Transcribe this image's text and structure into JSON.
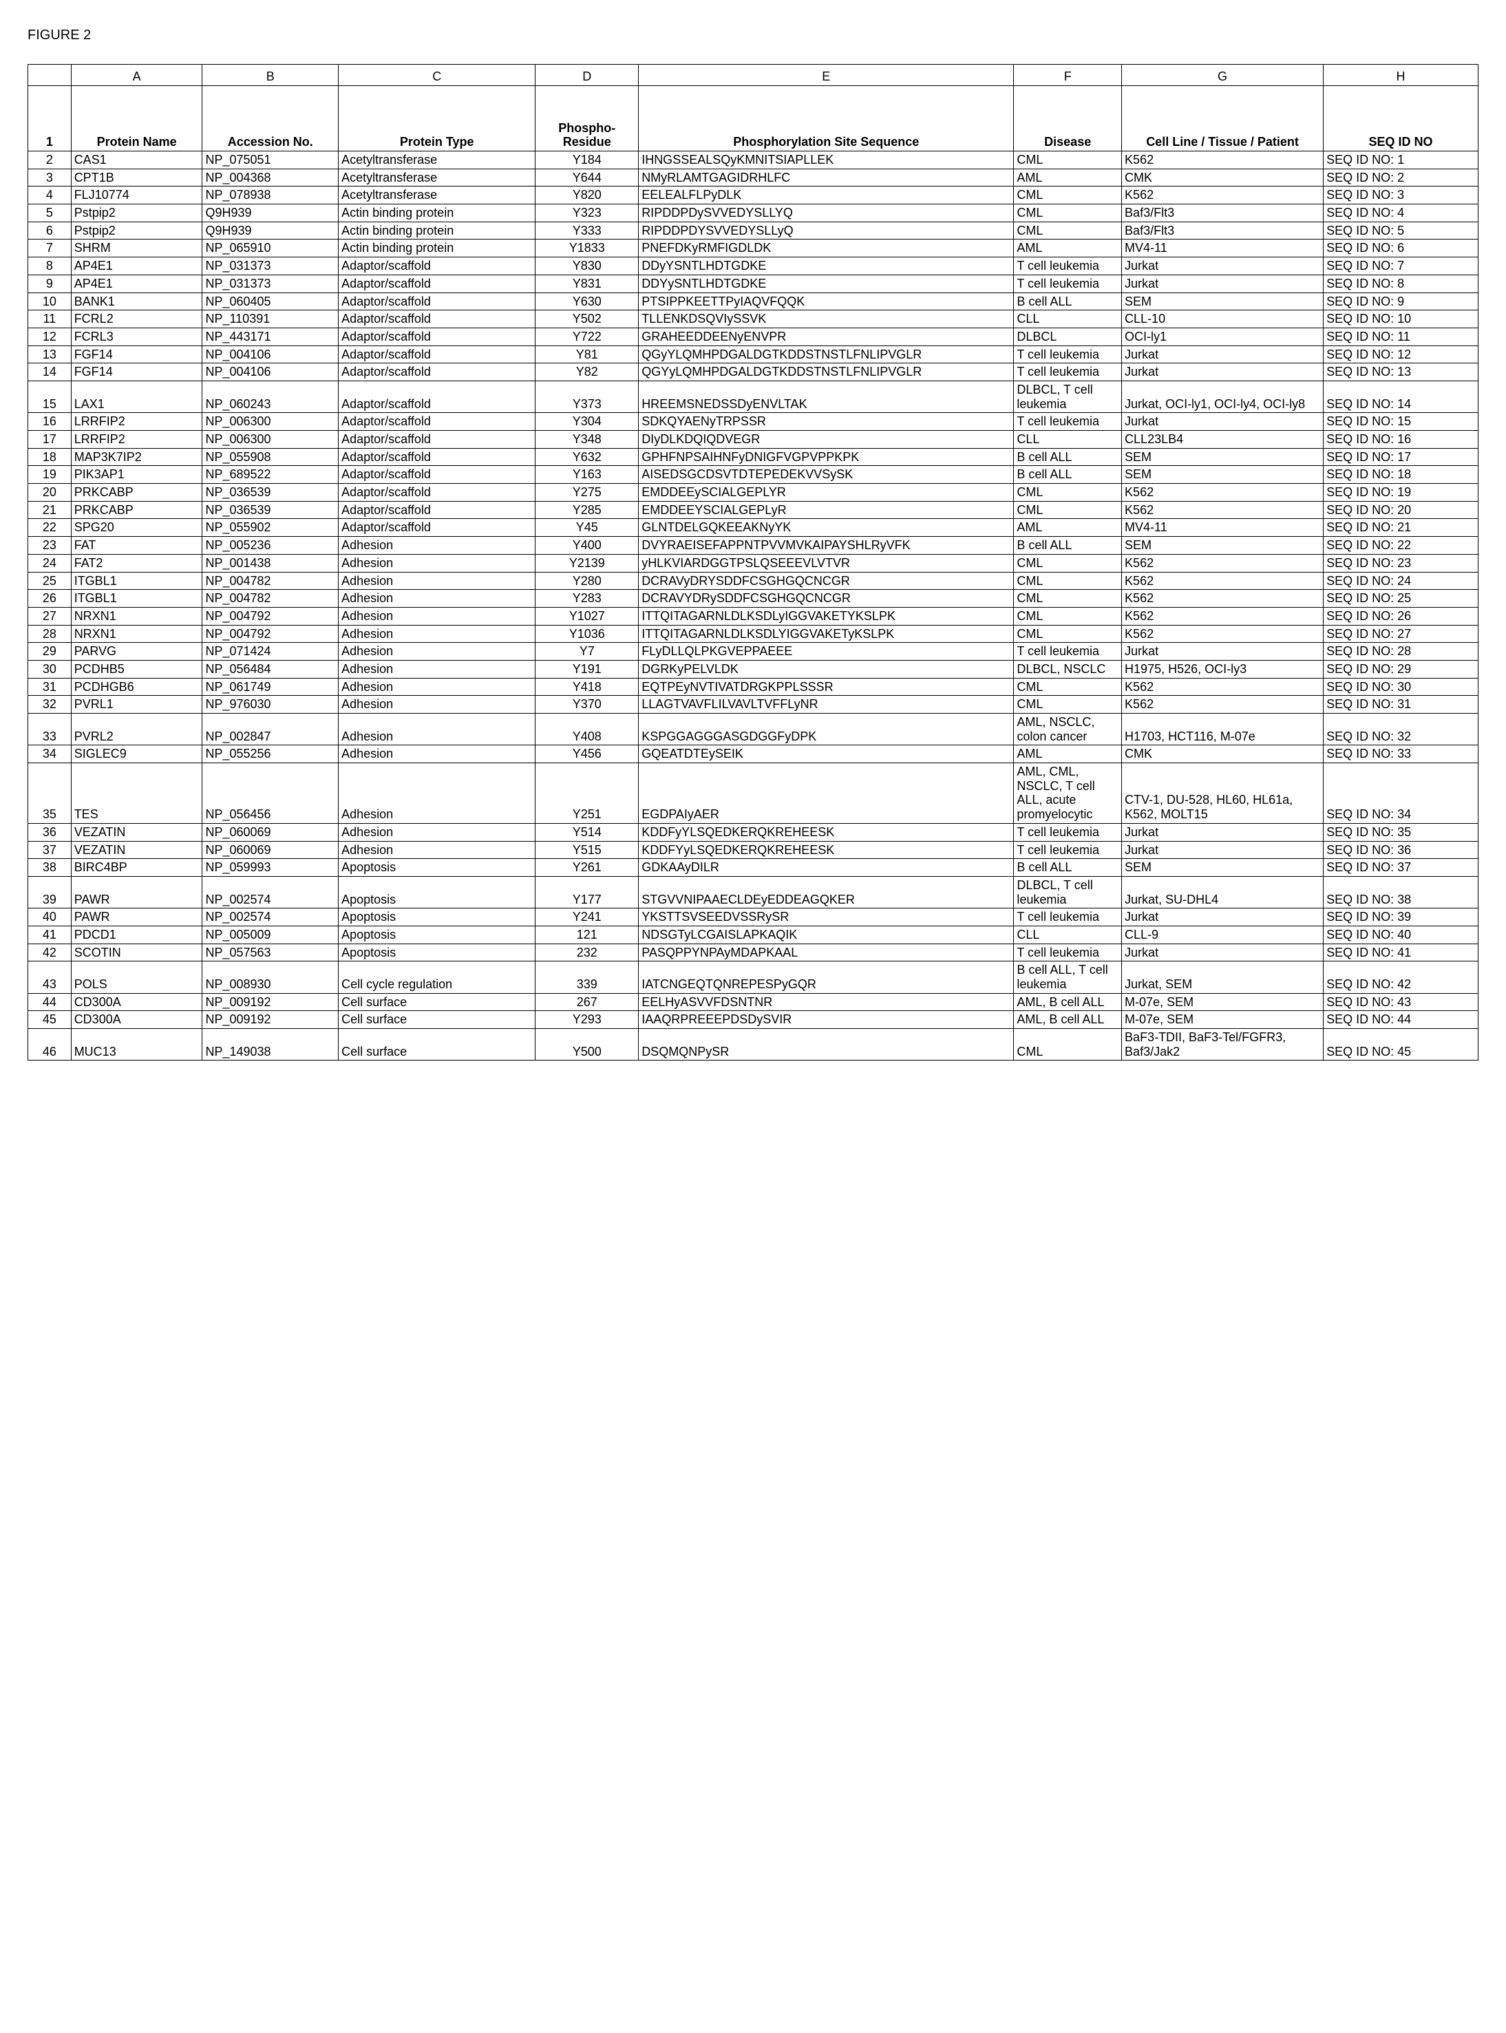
{
  "figure_label": "FIGURE 2",
  "col_letters": [
    "",
    "A",
    "B",
    "C",
    "D",
    "E",
    "F",
    "G",
    "H"
  ],
  "headers": {
    "row": "1",
    "a": "Protein Name",
    "b": "Accession No.",
    "c": "Protein Type",
    "d": "Phospho-Residue",
    "e": "Phosphorylation Site Sequence",
    "f": "Disease",
    "g": "Cell Line / Tissue / Patient",
    "h": "SEQ ID NO"
  },
  "rows": [
    {
      "n": "2",
      "a": "CAS1",
      "b": "NP_075051",
      "c": "Acetyltransferase",
      "d": "Y184",
      "e": "IHNGSSEALSQyKMNITSIAPLLEK",
      "f": "CML",
      "g": "K562",
      "h": "SEQ ID NO: 1"
    },
    {
      "n": "3",
      "a": "CPT1B",
      "b": "NP_004368",
      "c": "Acetyltransferase",
      "d": "Y644",
      "e": "NMyRLAMTGAGIDRHLFC",
      "f": "AML",
      "g": "CMK",
      "h": "SEQ ID NO: 2"
    },
    {
      "n": "4",
      "a": "FLJ10774",
      "b": "NP_078938",
      "c": "Acetyltransferase",
      "d": "Y820",
      "e": "EELEALFLPyDLK",
      "f": "CML",
      "g": "K562",
      "h": "SEQ ID NO: 3"
    },
    {
      "n": "5",
      "a": "Pstpip2",
      "b": "Q9H939",
      "c": "Actin binding protein",
      "d": "Y323",
      "e": "RIPDDPDySVVEDYSLLYQ",
      "f": "CML",
      "g": "Baf3/Flt3",
      "h": "SEQ ID NO: 4"
    },
    {
      "n": "6",
      "a": "Pstpip2",
      "b": "Q9H939",
      "c": "Actin binding protein",
      "d": "Y333",
      "e": "RIPDDPDYSVVEDYSLLyQ",
      "f": "CML",
      "g": "Baf3/Flt3",
      "h": "SEQ ID NO: 5"
    },
    {
      "n": "7",
      "a": "SHRM",
      "b": "NP_065910",
      "c": "Actin binding protein",
      "d": "Y1833",
      "e": "PNEFDKyRMFIGDLDK",
      "f": "AML",
      "g": "MV4-11",
      "h": "SEQ ID NO: 6"
    },
    {
      "n": "8",
      "a": "AP4E1",
      "b": "NP_031373",
      "c": "Adaptor/scaffold",
      "d": "Y830",
      "e": "DDyYSNTLHDTGDKE",
      "f": "T cell leukemia",
      "g": "Jurkat",
      "h": "SEQ ID NO: 7"
    },
    {
      "n": "9",
      "a": "AP4E1",
      "b": "NP_031373",
      "c": "Adaptor/scaffold",
      "d": "Y831",
      "e": "DDYySNTLHDTGDKE",
      "f": "T cell leukemia",
      "g": "Jurkat",
      "h": "SEQ ID NO: 8"
    },
    {
      "n": "10",
      "a": "BANK1",
      "b": "NP_060405",
      "c": "Adaptor/scaffold",
      "d": "Y630",
      "e": "PTSIPPKEETTPyIAQVFQQK",
      "f": "B cell ALL",
      "g": "SEM",
      "h": "SEQ ID NO: 9"
    },
    {
      "n": "11",
      "a": "FCRL2",
      "b": "NP_110391",
      "c": "Adaptor/scaffold",
      "d": "Y502",
      "e": "TLLENKDSQVIySSVK",
      "f": "CLL",
      "g": "CLL-10",
      "h": "SEQ ID NO: 10"
    },
    {
      "n": "12",
      "a": "FCRL3",
      "b": "NP_443171",
      "c": "Adaptor/scaffold",
      "d": "Y722",
      "e": "GRAHEEDDEENyENVPR",
      "f": "DLBCL",
      "g": "OCI-ly1",
      "h": "SEQ ID NO: 11"
    },
    {
      "n": "13",
      "a": "FGF14",
      "b": "NP_004106",
      "c": "Adaptor/scaffold",
      "d": "Y81",
      "e": "QGyYLQMHPDGALDGTKDDSTNSTLFNLIPVGLR",
      "f": "T cell leukemia",
      "g": "Jurkat",
      "h": "SEQ ID NO: 12"
    },
    {
      "n": "14",
      "a": "FGF14",
      "b": "NP_004106",
      "c": "Adaptor/scaffold",
      "d": "Y82",
      "e": "QGYyLQMHPDGALDGTKDDSTNSTLFNLIPVGLR",
      "f": "T cell leukemia",
      "g": "Jurkat",
      "h": "SEQ ID NO: 13"
    },
    {
      "n": "15",
      "a": "LAX1",
      "b": "NP_060243",
      "c": "Adaptor/scaffold",
      "d": "Y373",
      "e": "HREEMSNEDSSDyENVLTAK",
      "f": "DLBCL, T cell leukemia",
      "g": "Jurkat, OCI-ly1, OCI-ly4, OCI-ly8",
      "h": "SEQ ID NO: 14"
    },
    {
      "n": "16",
      "a": "LRRFIP2",
      "b": "NP_006300",
      "c": "Adaptor/scaffold",
      "d": "Y304",
      "e": "SDKQYAENyTRPSSR",
      "f": "T cell leukemia",
      "g": "Jurkat",
      "h": "SEQ ID NO: 15"
    },
    {
      "n": "17",
      "a": "LRRFIP2",
      "b": "NP_006300",
      "c": "Adaptor/scaffold",
      "d": "Y348",
      "e": "DIyDLKDQIQDVEGR",
      "f": "CLL",
      "g": "CLL23LB4",
      "h": "SEQ ID NO: 16"
    },
    {
      "n": "18",
      "a": "MAP3K7IP2",
      "b": "NP_055908",
      "c": "Adaptor/scaffold",
      "d": "Y632",
      "e": "GPHFNPSAIHNFyDNIGFVGPVPPKPK",
      "f": "B cell ALL",
      "g": "SEM",
      "h": "SEQ ID NO: 17"
    },
    {
      "n": "19",
      "a": "PIK3AP1",
      "b": "NP_689522",
      "c": "Adaptor/scaffold",
      "d": "Y163",
      "e": "AISEDSGCDSVTDTEPEDEKVVSySK",
      "f": "B cell ALL",
      "g": "SEM",
      "h": "SEQ ID NO: 18"
    },
    {
      "n": "20",
      "a": "PRKCABP",
      "b": "NP_036539",
      "c": "Adaptor/scaffold",
      "d": "Y275",
      "e": "EMDDEEySCIALGEPLYR",
      "f": "CML",
      "g": "K562",
      "h": "SEQ ID NO: 19"
    },
    {
      "n": "21",
      "a": "PRKCABP",
      "b": "NP_036539",
      "c": "Adaptor/scaffold",
      "d": "Y285",
      "e": "EMDDEEYSCIALGEPLyR",
      "f": "CML",
      "g": "K562",
      "h": "SEQ ID NO: 20"
    },
    {
      "n": "22",
      "a": "SPG20",
      "b": "NP_055902",
      "c": "Adaptor/scaffold",
      "d": "Y45",
      "e": "GLNTDELGQKEEAKNyYK",
      "f": "AML",
      "g": "MV4-11",
      "h": "SEQ ID NO: 21"
    },
    {
      "n": "23",
      "a": "FAT",
      "b": "NP_005236",
      "c": "Adhesion",
      "d": "Y400",
      "e": "DVYRAEISEFAPPNTPVVMVKAIPAYSHLRyVFK",
      "f": "B cell ALL",
      "g": "SEM",
      "h": "SEQ ID NO: 22"
    },
    {
      "n": "24",
      "a": "FAT2",
      "b": "NP_001438",
      "c": "Adhesion",
      "d": "Y2139",
      "e": "yHLKVIARDGGTPSLQSEEEVLVTVR",
      "f": "CML",
      "g": "K562",
      "h": "SEQ ID NO: 23"
    },
    {
      "n": "25",
      "a": "ITGBL1",
      "b": "NP_004782",
      "c": "Adhesion",
      "d": "Y280",
      "e": "DCRAVyDRYSDDFCSGHGQCNCGR",
      "f": "CML",
      "g": "K562",
      "h": "SEQ ID NO: 24"
    },
    {
      "n": "26",
      "a": "ITGBL1",
      "b": "NP_004782",
      "c": "Adhesion",
      "d": "Y283",
      "e": "DCRAVYDRySDDFCSGHGQCNCGR",
      "f": "CML",
      "g": "K562",
      "h": "SEQ ID NO: 25"
    },
    {
      "n": "27",
      "a": "NRXN1",
      "b": "NP_004792",
      "c": "Adhesion",
      "d": "Y1027",
      "e": "ITTQITAGARNLDLKSDLyIGGVAKETYKSLPK",
      "f": "CML",
      "g": "K562",
      "h": "SEQ ID NO: 26"
    },
    {
      "n": "28",
      "a": "NRXN1",
      "b": "NP_004792",
      "c": "Adhesion",
      "d": "Y1036",
      "e": "ITTQITAGARNLDLKSDLYIGGVAKETyKSLPK",
      "f": "CML",
      "g": "K562",
      "h": "SEQ ID NO: 27"
    },
    {
      "n": "29",
      "a": "PARVG",
      "b": "NP_071424",
      "c": "Adhesion",
      "d": "Y7",
      "e": "FLyDLLQLPKGVEPPAEEE",
      "f": "T cell leukemia",
      "g": "Jurkat",
      "h": "SEQ ID NO: 28"
    },
    {
      "n": "30",
      "a": "PCDHB5",
      "b": "NP_056484",
      "c": "Adhesion",
      "d": "Y191",
      "e": "DGRKyPELVLDK",
      "f": "DLBCL, NSCLC",
      "g": "H1975, H526, OCI-ly3",
      "h": "SEQ ID NO: 29"
    },
    {
      "n": "31",
      "a": "PCDHGB6",
      "b": "NP_061749",
      "c": "Adhesion",
      "d": "Y418",
      "e": "EQTPEyNVTIVATDRGKPPLSSSR",
      "f": "CML",
      "g": "K562",
      "h": "SEQ ID NO: 30"
    },
    {
      "n": "32",
      "a": "PVRL1",
      "b": "NP_976030",
      "c": "Adhesion",
      "d": "Y370",
      "e": "LLAGTVAVFLILVAVLTVFFLyNR",
      "f": "CML",
      "g": "K562",
      "h": "SEQ ID NO: 31"
    },
    {
      "n": "33",
      "a": "PVRL2",
      "b": "NP_002847",
      "c": "Adhesion",
      "d": "Y408",
      "e": "KSPGGAGGGASGDGGFyDPK",
      "f": "AML, NSCLC, colon cancer",
      "g": "H1703, HCT116, M-07e",
      "h": "SEQ ID NO: 32"
    },
    {
      "n": "34",
      "a": "SIGLEC9",
      "b": "NP_055256",
      "c": "Adhesion",
      "d": "Y456",
      "e": "GQEATDTEySEIK",
      "f": "AML",
      "g": "CMK",
      "h": "SEQ ID NO: 33"
    },
    {
      "n": "35",
      "a": "TES",
      "b": "NP_056456",
      "c": "Adhesion",
      "d": "Y251",
      "e": "EGDPAIyAER",
      "f": "AML, CML, NSCLC, T cell ALL, acute promyelocytic",
      "g": "CTV-1, DU-528, HL60, HL61a, K562, MOLT15",
      "h": "SEQ ID NO: 34"
    },
    {
      "n": "36",
      "a": "VEZATIN",
      "b": "NP_060069",
      "c": "Adhesion",
      "d": "Y514",
      "e": "KDDFyYLSQEDKERQKREHEESK",
      "f": "T cell leukemia",
      "g": "Jurkat",
      "h": "SEQ ID NO: 35"
    },
    {
      "n": "37",
      "a": "VEZATIN",
      "b": "NP_060069",
      "c": "Adhesion",
      "d": "Y515",
      "e": "KDDFYyLSQEDKERQKREHEESK",
      "f": "T cell leukemia",
      "g": "Jurkat",
      "h": "SEQ ID NO: 36"
    },
    {
      "n": "38",
      "a": "BIRC4BP",
      "b": "NP_059993",
      "c": "Apoptosis",
      "d": "Y261",
      "e": "GDKAAyDILR",
      "f": "B cell ALL",
      "g": "SEM",
      "h": "SEQ ID NO: 37"
    },
    {
      "n": "39",
      "a": "PAWR",
      "b": "NP_002574",
      "c": "Apoptosis",
      "d": "Y177",
      "e": "STGVVNIPAAECLDEyEDDEAGQKER",
      "f": "DLBCL, T cell leukemia",
      "g": "Jurkat, SU-DHL4",
      "h": "SEQ ID NO: 38"
    },
    {
      "n": "40",
      "a": "PAWR",
      "b": "NP_002574",
      "c": "Apoptosis",
      "d": "Y241",
      "e": "YKSTTSVSEEDVSSRySR",
      "f": "T cell leukemia",
      "g": "Jurkat",
      "h": "SEQ ID NO: 39"
    },
    {
      "n": "41",
      "a": "PDCD1",
      "b": "NP_005009",
      "c": "Apoptosis",
      "d": "121",
      "e": "NDSGTyLCGAISLAPKAQIK",
      "f": "CLL",
      "g": "CLL-9",
      "h": "SEQ ID NO: 40"
    },
    {
      "n": "42",
      "a": "SCOTIN",
      "b": "NP_057563",
      "c": "Apoptosis",
      "d": "232",
      "e": "PASQPPYNPAyMDAPKAAL",
      "f": "T cell leukemia",
      "g": "Jurkat",
      "h": "SEQ ID NO: 41"
    },
    {
      "n": "43",
      "a": "POLS",
      "b": "NP_008930",
      "c": "Cell cycle regulation",
      "d": "339",
      "e": "IATCNGEQTQNREPESPyGQR",
      "f": "B cell ALL, T cell leukemia",
      "g": "Jurkat, SEM",
      "h": "SEQ ID NO: 42"
    },
    {
      "n": "44",
      "a": "CD300A",
      "b": "NP_009192",
      "c": "Cell surface",
      "d": "267",
      "e": "EELHyASVVFDSNTNR",
      "f": "AML, B cell ALL",
      "g": "M-07e, SEM",
      "h": "SEQ ID NO: 43"
    },
    {
      "n": "45",
      "a": "CD300A",
      "b": "NP_009192",
      "c": "Cell surface",
      "d": "Y293",
      "e": "IAAQRPREEEPDSDySVIR",
      "f": "AML, B cell ALL",
      "g": "M-07e, SEM",
      "h": "SEQ ID NO: 44"
    },
    {
      "n": "46",
      "a": "MUC13",
      "b": "NP_149038",
      "c": "Cell surface",
      "d": "Y500",
      "e": "DSQMQNPySR",
      "f": "CML",
      "g": "BaF3-TDII, BaF3-Tel/FGFR3, Baf3/Jak2",
      "h": "SEQ ID NO: 45"
    }
  ]
}
